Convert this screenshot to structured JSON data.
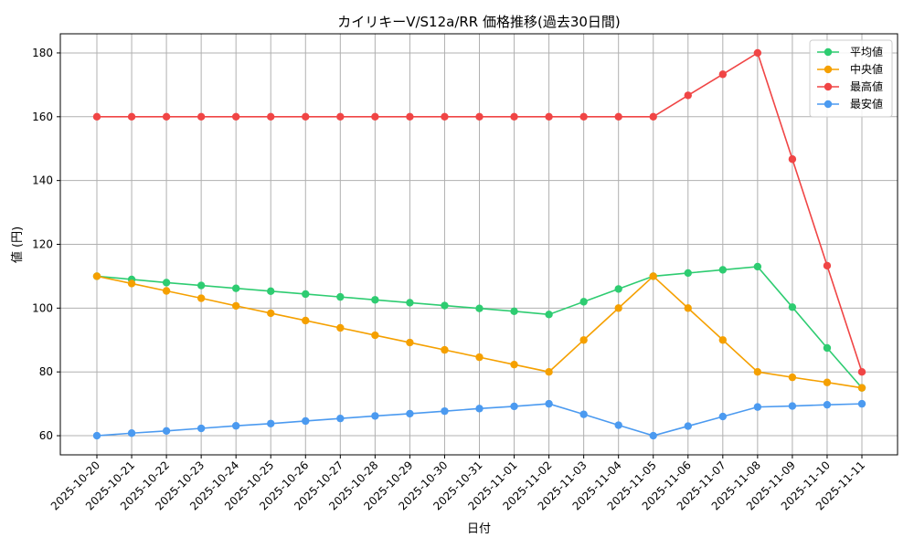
{
  "chart_data": {
    "type": "line",
    "title": "カイリキーV/S12a/RR 価格推移(過去30日間)",
    "xlabel": "日付",
    "ylabel": "値 (円)",
    "x": [
      "2025-10-20",
      "2025-10-21",
      "2025-10-22",
      "2025-10-23",
      "2025-10-24",
      "2025-10-25",
      "2025-10-26",
      "2025-10-27",
      "2025-10-28",
      "2025-10-29",
      "2025-10-30",
      "2025-10-31",
      "2025-11-01",
      "2025-11-02",
      "2025-11-03",
      "2025-11-04",
      "2025-11-05",
      "2025-11-06",
      "2025-11-07",
      "2025-11-08",
      "2025-11-09",
      "2025-11-10",
      "2025-11-11"
    ],
    "ylim": [
      54,
      186
    ],
    "yticks": [
      60,
      80,
      100,
      120,
      140,
      160,
      180
    ],
    "grid": true,
    "legend_position": "top-right",
    "series": [
      {
        "name": "平均値",
        "color": "#2ecc71",
        "values": [
          110,
          109,
          108,
          107.1,
          106.2,
          105.3,
          104.4,
          103.5,
          102.6,
          101.7,
          100.8,
          99.9,
          99,
          98,
          102,
          106,
          110,
          111,
          112,
          113,
          100.3,
          87.5,
          75
        ]
      },
      {
        "name": "中央値",
        "color": "#f5a000",
        "values": [
          110,
          107.7,
          105.4,
          103.1,
          100.7,
          98.4,
          96.1,
          93.8,
          91.5,
          89.2,
          86.9,
          84.6,
          82.3,
          80,
          90,
          100,
          110,
          100,
          90,
          80,
          78.3,
          76.7,
          75
        ]
      },
      {
        "name": "最高値",
        "color": "#f04545",
        "values": [
          160,
          160,
          160,
          160,
          160,
          160,
          160,
          160,
          160,
          160,
          160,
          160,
          160,
          160,
          160,
          160,
          160,
          166.7,
          173.3,
          180,
          146.7,
          113.3,
          80
        ]
      },
      {
        "name": "最安値",
        "color": "#4b9af0",
        "values": [
          60,
          60.8,
          61.5,
          62.3,
          63.1,
          63.8,
          64.6,
          65.4,
          66.2,
          66.9,
          67.7,
          68.5,
          69.2,
          70,
          66.7,
          63.3,
          60,
          63,
          66,
          69,
          69.3,
          69.7,
          70
        ]
      }
    ]
  }
}
